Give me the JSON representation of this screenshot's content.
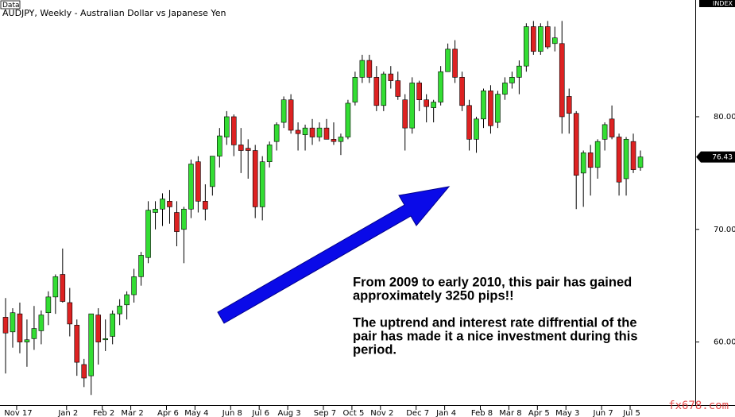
{
  "chart_data": {
    "type": "candlestick",
    "tag": "Data",
    "title": "AUDJPY, Weekly - Australian Dollar vs Japanese Yen",
    "axis_tag": "INDEX",
    "last_price": 76.43,
    "watermark": "fx678.com",
    "annotations": [
      [
        "From 2009 to early 2010, this pair has gained",
        "approximately 3250 pips!!"
      ],
      [
        "The uptrend and interest rate diffrential of the",
        "pair has made it a nice investment during this",
        "period."
      ]
    ],
    "up_color": "#33dd33",
    "down_color": "#dd2222",
    "ylim": [
      54.4,
      89.8
    ],
    "yticks": [
      {
        "value": 60,
        "label": "60.00"
      },
      {
        "value": 70,
        "label": "70.00"
      },
      {
        "value": 80,
        "label": "80.00"
      }
    ],
    "categories": [
      null,
      null,
      "Nov 17",
      null,
      null,
      null,
      null,
      null,
      null,
      "Jan 2",
      null,
      null,
      null,
      null,
      "Feb 2",
      null,
      null,
      null,
      "Mar 2",
      null,
      null,
      null,
      null,
      "Apr 6",
      null,
      null,
      null,
      "May 4",
      null,
      null,
      null,
      null,
      "Jun 8",
      null,
      null,
      null,
      "Jul 6",
      null,
      null,
      null,
      "Aug 3",
      null,
      null,
      null,
      null,
      "Sep 7",
      null,
      null,
      null,
      "Oct 5",
      null,
      null,
      null,
      "Nov 2",
      null,
      null,
      null,
      null,
      "Dec 7",
      null,
      null,
      null,
      "Jan 4",
      null,
      null,
      null,
      null,
      "Feb 8",
      null,
      null,
      null,
      "Mar 8",
      null,
      null,
      null,
      "Apr 5",
      null,
      null,
      null,
      "May 3",
      null,
      null,
      null,
      null,
      "Jun 7",
      null,
      null,
      null,
      "Jul 5",
      null
    ],
    "open": [
      62.2,
      60.9,
      62.5,
      60.0,
      60.3,
      61.0,
      62.6,
      64.0,
      66.0,
      63.5,
      61.5,
      58.0,
      57.0,
      62.4,
      60.2,
      60.5,
      62.5,
      63.3,
      64.2,
      65.8,
      67.5,
      71.5,
      71.8,
      72.5,
      71.5,
      70.0,
      71.8,
      76.0,
      72.5,
      73.8,
      76.5,
      78.2,
      80.0,
      77.5,
      77.2,
      77.0,
      72.0,
      76.0,
      77.8,
      79.5,
      81.5,
      78.8,
      78.4,
      79.0,
      78.2,
      79.0,
      78.0,
      77.8,
      78.2,
      81.3,
      83.5,
      85.0,
      83.5,
      81.0,
      83.8,
      83.2,
      81.5,
      79.0,
      83.0,
      81.5,
      80.8,
      81.3,
      84.0,
      86.0,
      83.5,
      81.0,
      78.0,
      79.8,
      82.3,
      79.5,
      82.0,
      83.0,
      83.5,
      84.5,
      88.0,
      85.8,
      88.0,
      86.5,
      86.5,
      81.8,
      80.3,
      75.0,
      76.8,
      75.5,
      78.0,
      79.8,
      78.2,
      74.5,
      77.8,
      75.5
    ],
    "high": [
      63.9,
      63.0,
      63.5,
      62.0,
      63.2,
      62.8,
      64.5,
      66.0,
      68.3,
      64.8,
      62.0,
      58.5,
      62.5,
      63.0,
      62.0,
      62.8,
      63.8,
      64.5,
      66.5,
      68.0,
      72.5,
      72.5,
      73.2,
      73.5,
      72.5,
      72.0,
      76.2,
      76.5,
      74.0,
      76.5,
      79.0,
      80.5,
      80.2,
      79.0,
      78.0,
      77.5,
      76.5,
      77.8,
      79.5,
      81.8,
      82.0,
      79.5,
      79.3,
      79.8,
      79.5,
      79.8,
      79.5,
      78.5,
      81.5,
      84.0,
      85.5,
      85.5,
      84.5,
      84.0,
      84.5,
      84.0,
      82.0,
      83.5,
      83.2,
      82.0,
      81.5,
      84.5,
      86.5,
      86.8,
      84.0,
      81.5,
      80.0,
      82.5,
      82.8,
      82.3,
      83.5,
      84.0,
      85.0,
      88.3,
      88.5,
      88.3,
      88.5,
      88.0,
      88.5,
      82.5,
      80.5,
      77.0,
      77.5,
      78.0,
      79.5,
      81.0,
      78.5,
      78.2,
      78.5,
      77.0
    ],
    "low": [
      57.2,
      59.5,
      59.0,
      57.8,
      59.3,
      59.8,
      61.5,
      62.5,
      63.5,
      60.5,
      57.0,
      56.0,
      55.3,
      58.0,
      59.2,
      59.8,
      61.5,
      62.0,
      63.5,
      65.0,
      67.0,
      70.0,
      70.3,
      70.5,
      68.5,
      67.0,
      71.0,
      71.5,
      70.8,
      73.0,
      75.5,
      77.5,
      76.5,
      75.0,
      74.5,
      71.0,
      70.8,
      75.5,
      77.0,
      79.0,
      78.5,
      77.0,
      77.0,
      77.5,
      77.8,
      78.0,
      77.5,
      76.6,
      78.0,
      81.0,
      83.0,
      83.0,
      80.5,
      80.5,
      82.5,
      81.5,
      77.0,
      78.5,
      80.5,
      79.5,
      79.5,
      81.0,
      84.0,
      83.0,
      80.5,
      77.0,
      76.8,
      79.0,
      78.5,
      79.0,
      81.5,
      82.5,
      82.0,
      84.0,
      85.5,
      85.5,
      86.0,
      85.8,
      78.5,
      78.5,
      71.8,
      72.0,
      73.0,
      74.5,
      77.0,
      78.0,
      73.0,
      73.0,
      75.0,
      75.2
    ],
    "close": [
      60.8,
      62.6,
      60.0,
      60.2,
      61.2,
      62.4,
      64.0,
      65.8,
      63.6,
      61.6,
      58.2,
      56.8,
      62.5,
      60.0,
      60.3,
      62.5,
      63.2,
      64.2,
      65.8,
      67.7,
      71.7,
      71.8,
      72.7,
      72.0,
      69.8,
      71.8,
      75.8,
      72.5,
      71.8,
      76.5,
      78.3,
      80.0,
      77.5,
      77.0,
      77.0,
      72.0,
      76.0,
      77.5,
      79.3,
      81.5,
      78.8,
      78.5,
      79.0,
      78.2,
      79.0,
      78.0,
      77.8,
      78.2,
      81.2,
      83.5,
      85.0,
      83.5,
      81.0,
      83.8,
      83.2,
      81.8,
      79.0,
      83.0,
      81.5,
      80.9,
      81.3,
      84.0,
      86.0,
      83.5,
      81.0,
      78.0,
      79.8,
      82.3,
      79.2,
      82.0,
      83.0,
      83.5,
      84.5,
      88.0,
      85.8,
      88.0,
      86.2,
      87.0,
      80.0,
      80.3,
      74.8,
      76.8,
      75.5,
      77.8,
      79.3,
      78.2,
      74.2,
      78.0,
      75.3,
      76.43
    ]
  }
}
